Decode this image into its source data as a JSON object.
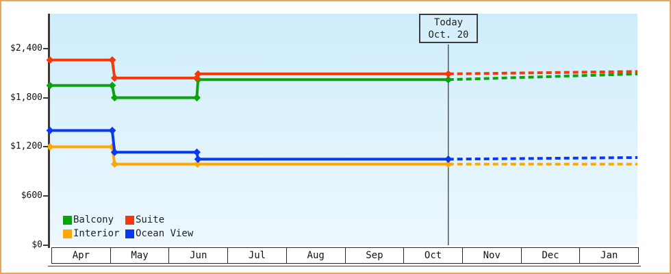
{
  "window": {
    "border_color": "#eba45d",
    "background": "#ffffff"
  },
  "chart_data": {
    "type": "line",
    "subtype": "step-price-history-with-projection",
    "title": "",
    "grid": false,
    "y_axis": {
      "ticks": [
        {
          "label": "$2,400",
          "value": 2400
        },
        {
          "label": "$1,800",
          "value": 1800
        },
        {
          "label": "$1,200",
          "value": 1200
        },
        {
          "label": "$600",
          "value": 600
        },
        {
          "label": "$0",
          "value": 0
        }
      ],
      "value_at_plot_top": 2825,
      "range": [
        0,
        2825
      ]
    },
    "x_axis": {
      "month_labels": [
        "Apr",
        "May",
        "Jun",
        "Jul",
        "Aug",
        "Sep",
        "Oct",
        "Nov",
        "Dec",
        "Jan"
      ]
    },
    "today_marker": {
      "line1": "Today",
      "line2": "Oct. 20",
      "x_frac": 0.678,
      "line_color": "#4d565c"
    },
    "legend_position": "bottom-left-inside",
    "legend": [
      {
        "label": "Balcony",
        "color": "#0ba30b"
      },
      {
        "label": "Suite",
        "color": "#f4380a"
      },
      {
        "label": "Interior",
        "color": "#ffa805"
      },
      {
        "label": "Ocean View",
        "color": "#0a38f0"
      }
    ],
    "series": [
      {
        "name": "Interior",
        "color": "#ffa805",
        "points": [
          [
            0,
            1200
          ],
          [
            0.106,
            1200
          ],
          [
            0.11,
            990
          ],
          [
            0.251,
            990
          ],
          [
            0.678,
            990
          ]
        ],
        "projection": [
          [
            0.678,
            990
          ],
          [
            1,
            990
          ]
        ],
        "projected_end_value": 990
      },
      {
        "name": "Ocean View",
        "color": "#0a38f0",
        "points": [
          [
            0,
            1400
          ],
          [
            0.106,
            1400
          ],
          [
            0.11,
            1135
          ],
          [
            0.25,
            1135
          ],
          [
            0.252,
            1050
          ],
          [
            0.678,
            1050
          ]
        ],
        "projection": [
          [
            0.678,
            1050
          ],
          [
            1,
            1070
          ]
        ],
        "projected_end_value": 1070
      },
      {
        "name": "Balcony",
        "color": "#0ba30b",
        "points": [
          [
            0,
            1950
          ],
          [
            0.106,
            1950
          ],
          [
            0.11,
            1800
          ],
          [
            0.25,
            1800
          ],
          [
            0.252,
            2020
          ],
          [
            0.678,
            2020
          ]
        ],
        "projection": [
          [
            0.678,
            2020
          ],
          [
            1,
            2090
          ]
        ],
        "projected_end_value": 2090
      },
      {
        "name": "Suite",
        "color": "#f4380a",
        "points": [
          [
            0,
            2260
          ],
          [
            0.106,
            2260
          ],
          [
            0.11,
            2040
          ],
          [
            0.25,
            2040
          ],
          [
            0.252,
            2090
          ],
          [
            0.678,
            2090
          ]
        ],
        "projection": [
          [
            0.678,
            2090
          ],
          [
            1,
            2120
          ]
        ],
        "projected_end_value": 2120
      }
    ]
  }
}
